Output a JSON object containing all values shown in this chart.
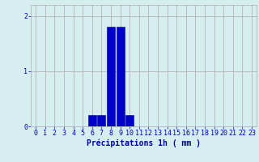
{
  "hours": [
    0,
    1,
    2,
    3,
    4,
    5,
    6,
    7,
    8,
    9,
    10,
    11,
    12,
    13,
    14,
    15,
    16,
    17,
    18,
    19,
    20,
    21,
    22,
    23
  ],
  "values": [
    0,
    0,
    0,
    0,
    0,
    0,
    0.2,
    0.2,
    1.8,
    1.8,
    0.2,
    0,
    0,
    0,
    0,
    0,
    0,
    0,
    0,
    0,
    0,
    0,
    0,
    0
  ],
  "bar_color": "#0000cc",
  "bar_edge_color": "#00008b",
  "background_color": "#d6eef0",
  "grid_color": "#aaaaaa",
  "text_color": "#0000aa",
  "xlabel": "Précipitations 1h ( mm )",
  "ylim": [
    0,
    2.2
  ],
  "yticks": [
    0,
    1,
    2
  ],
  "xlim": [
    -0.5,
    23.5
  ],
  "label_fontsize": 7,
  "tick_fontsize": 6
}
